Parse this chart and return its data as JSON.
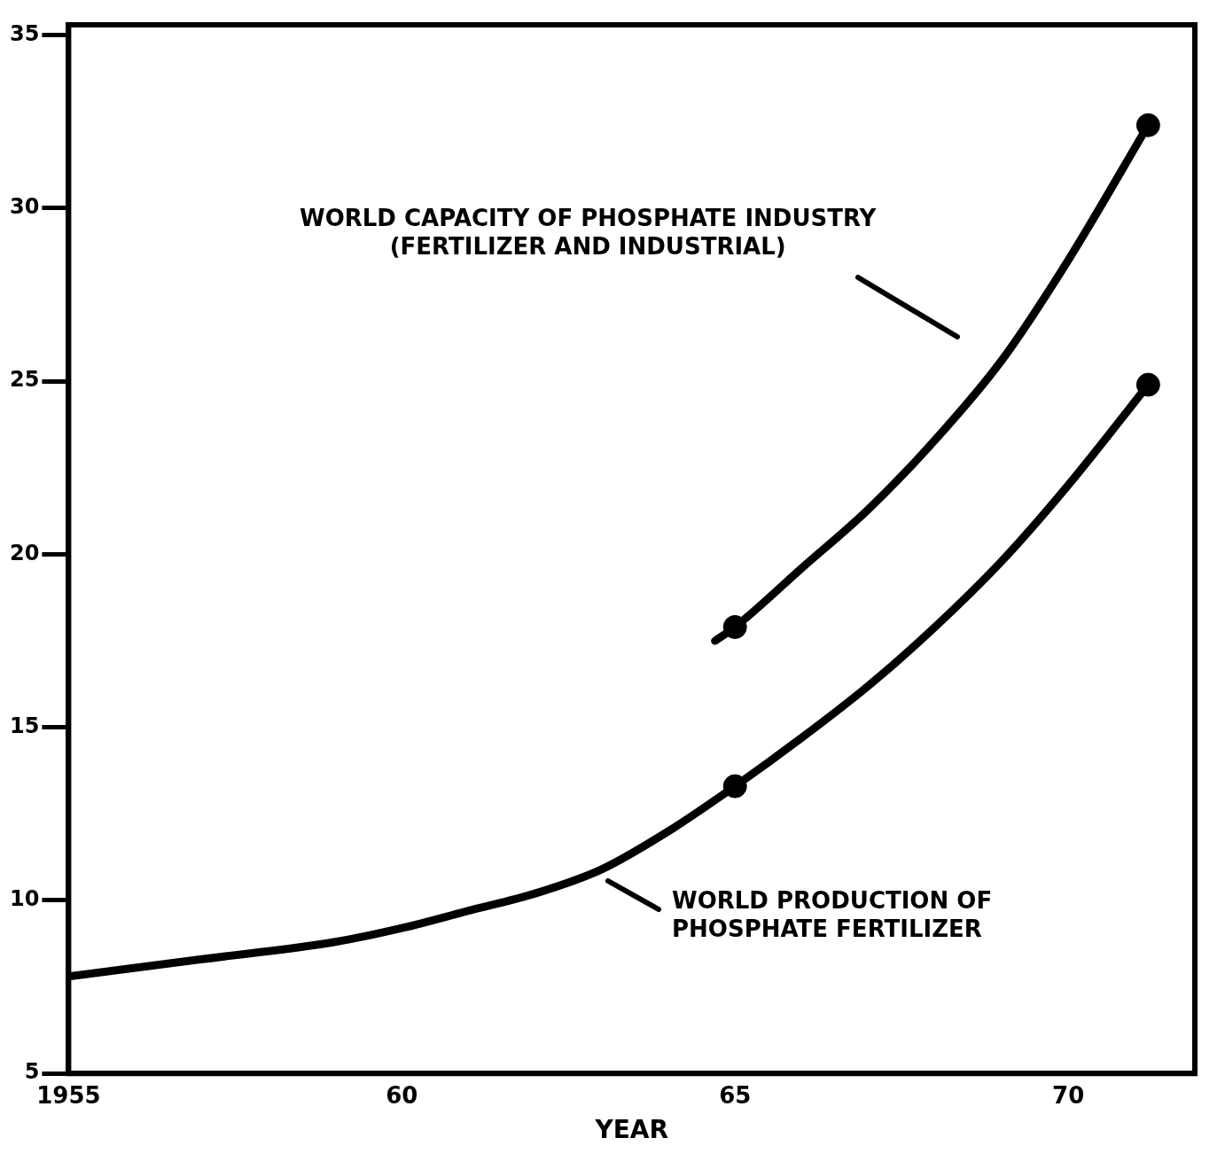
{
  "chart_data": {
    "type": "line",
    "xlabel": "YEAR",
    "xlim": [
      1955,
      1971.9
    ],
    "ylim": [
      5,
      35.3
    ],
    "xticks": [
      {
        "value": 1955,
        "label": "1955"
      },
      {
        "value": 1960,
        "label": "60"
      },
      {
        "value": 1965,
        "label": "65"
      },
      {
        "value": 1970,
        "label": "70"
      }
    ],
    "yticks": [
      5,
      10,
      15,
      20,
      25,
      30,
      35
    ],
    "grid": false,
    "legend": false,
    "line_style": "solid",
    "series": [
      {
        "color": "#000000",
        "x": [
          1955,
          1957,
          1959,
          1960,
          1961,
          1962,
          1963,
          1964,
          1965,
          1966,
          1967,
          1968,
          1969,
          1970,
          1971.2
        ],
        "values": [
          7.8,
          8.3,
          8.8,
          9.2,
          9.7,
          10.2,
          10.9,
          12,
          13.3,
          14.7,
          16.2,
          17.9,
          19.8,
          22,
          24.9
        ]
      },
      {
        "color": "#000000",
        "x": [
          1964.7,
          1965,
          1966,
          1967,
          1968,
          1969,
          1970,
          1971.2
        ],
        "values": [
          17.5,
          17.9,
          19.6,
          21.3,
          23.3,
          25.6,
          28.5,
          32.4
        ]
      },
      {
        "type": "scatter",
        "color": "#000000",
        "marker": "circle",
        "x": [
          1965,
          1971.2,
          1965,
          1971.2
        ],
        "values": [
          13.3,
          24.9,
          17.9,
          32.4
        ]
      }
    ],
    "annotations": [
      "WORLD CAPACITY OF PHOSPHATE INDUSTRY\n(FERTILIZER AND INDUSTRIAL)",
      "WORLD PRODUCTION OF\nPHOSPHATE FERTILIZER"
    ]
  }
}
